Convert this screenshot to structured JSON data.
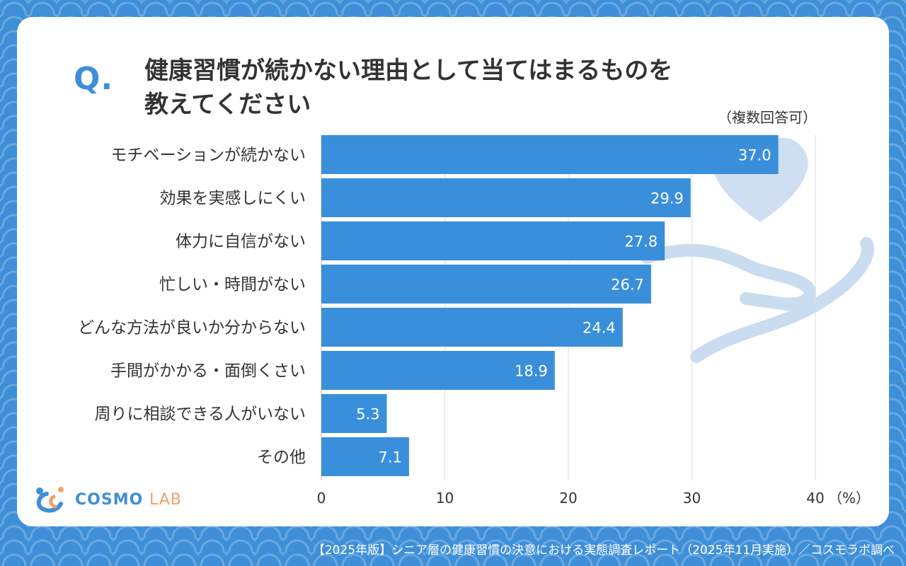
{
  "question_mark": "Q.",
  "title": {
    "line1": "健康習慣が続かない理由として当てはまるものを",
    "line2": "教えてください"
  },
  "note": "（複数回答可）",
  "footer": "【2025年版】シニア層の健康習慣の決意における実態調査レポート（2025年11月実施）／コスモラボ調べ",
  "logo": {
    "name": "COSMO",
    "suffix": "LAB"
  },
  "colors": {
    "bar": "#3a8fdb",
    "background": "#3f8fd8",
    "decoration": "#c9dcf0",
    "grid": "#dddddd",
    "text": "#333333"
  },
  "chart_data": {
    "type": "bar",
    "orientation": "horizontal",
    "categories": [
      "モチベーションが続かない",
      "効果を実感しにくい",
      "体力に自信がない",
      "忙しい・時間がない",
      "どんな方法が良いか分からない",
      "手間がかかる・面倒くさい",
      "周りに相談できる人がいない",
      "その他"
    ],
    "values": [
      37.0,
      29.9,
      27.8,
      26.7,
      24.4,
      18.9,
      5.3,
      7.1
    ],
    "value_labels": [
      "37.0",
      "29.9",
      "27.8",
      "26.7",
      "24.4",
      "18.9",
      "5.3",
      "7.1"
    ],
    "xlim": [
      0,
      40
    ],
    "xticks": [
      "0",
      "10",
      "20",
      "30",
      "40"
    ],
    "x_unit": "（%）",
    "grid": true
  }
}
